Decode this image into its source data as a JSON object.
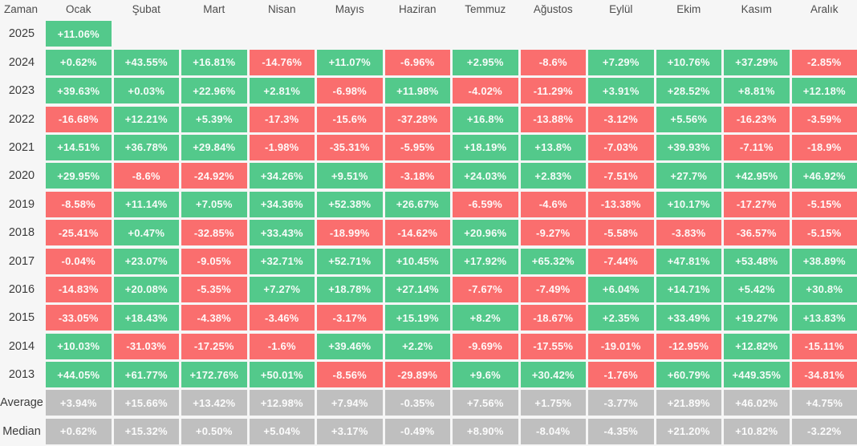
{
  "chart_data": {
    "type": "heatmap",
    "columns": [
      "Zaman",
      "Ocak",
      "Şubat",
      "Mart",
      "Nisan",
      "Mayıs",
      "Haziran",
      "Temmuz",
      "Ağustos",
      "Eylül",
      "Ekim",
      "Kasım",
      "Aralık"
    ],
    "rows": [
      {
        "label": "2025",
        "type": "year",
        "values": [
          "+11.06%",
          null,
          null,
          null,
          null,
          null,
          null,
          null,
          null,
          null,
          null,
          null
        ]
      },
      {
        "label": "2024",
        "type": "year",
        "values": [
          "+0.62%",
          "+43.55%",
          "+16.81%",
          "-14.76%",
          "+11.07%",
          "-6.96%",
          "+2.95%",
          "-8.6%",
          "+7.29%",
          "+10.76%",
          "+37.29%",
          "-2.85%"
        ]
      },
      {
        "label": "2023",
        "type": "year",
        "values": [
          "+39.63%",
          "+0.03%",
          "+22.96%",
          "+2.81%",
          "-6.98%",
          "+11.98%",
          "-4.02%",
          "-11.29%",
          "+3.91%",
          "+28.52%",
          "+8.81%",
          "+12.18%"
        ]
      },
      {
        "label": "2022",
        "type": "year",
        "values": [
          "-16.68%",
          "+12.21%",
          "+5.39%",
          "-17.3%",
          "-15.6%",
          "-37.28%",
          "+16.8%",
          "-13.88%",
          "-3.12%",
          "+5.56%",
          "-16.23%",
          "-3.59%"
        ]
      },
      {
        "label": "2021",
        "type": "year",
        "values": [
          "+14.51%",
          "+36.78%",
          "+29.84%",
          "-1.98%",
          "-35.31%",
          "-5.95%",
          "+18.19%",
          "+13.8%",
          "-7.03%",
          "+39.93%",
          "-7.11%",
          "-18.9%"
        ]
      },
      {
        "label": "2020",
        "type": "year",
        "values": [
          "+29.95%",
          "-8.6%",
          "-24.92%",
          "+34.26%",
          "+9.51%",
          "-3.18%",
          "+24.03%",
          "+2.83%",
          "-7.51%",
          "+27.7%",
          "+42.95%",
          "+46.92%"
        ]
      },
      {
        "label": "2019",
        "type": "year",
        "values": [
          "-8.58%",
          "+11.14%",
          "+7.05%",
          "+34.36%",
          "+52.38%",
          "+26.67%",
          "-6.59%",
          "-4.6%",
          "-13.38%",
          "+10.17%",
          "-17.27%",
          "-5.15%"
        ]
      },
      {
        "label": "2018",
        "type": "year",
        "values": [
          "-25.41%",
          "+0.47%",
          "-32.85%",
          "+33.43%",
          "-18.99%",
          "-14.62%",
          "+20.96%",
          "-9.27%",
          "-5.58%",
          "-3.83%",
          "-36.57%",
          "-5.15%"
        ]
      },
      {
        "label": "2017",
        "type": "year",
        "values": [
          "-0.04%",
          "+23.07%",
          "-9.05%",
          "+32.71%",
          "+52.71%",
          "+10.45%",
          "+17.92%",
          "+65.32%",
          "-7.44%",
          "+47.81%",
          "+53.48%",
          "+38.89%"
        ]
      },
      {
        "label": "2016",
        "type": "year",
        "values": [
          "-14.83%",
          "+20.08%",
          "-5.35%",
          "+7.27%",
          "+18.78%",
          "+27.14%",
          "-7.67%",
          "-7.49%",
          "+6.04%",
          "+14.71%",
          "+5.42%",
          "+30.8%"
        ]
      },
      {
        "label": "2015",
        "type": "year",
        "values": [
          "-33.05%",
          "+18.43%",
          "-4.38%",
          "-3.46%",
          "-3.17%",
          "+15.19%",
          "+8.2%",
          "-18.67%",
          "+2.35%",
          "+33.49%",
          "+19.27%",
          "+13.83%"
        ]
      },
      {
        "label": "2014",
        "type": "year",
        "values": [
          "+10.03%",
          "-31.03%",
          "-17.25%",
          "-1.6%",
          "+39.46%",
          "+2.2%",
          "-9.69%",
          "-17.55%",
          "-19.01%",
          "-12.95%",
          "+12.82%",
          "-15.11%"
        ]
      },
      {
        "label": "2013",
        "type": "year",
        "values": [
          "+44.05%",
          "+61.77%",
          "+172.76%",
          "+50.01%",
          "-8.56%",
          "-29.89%",
          "+9.6%",
          "+30.42%",
          "-1.76%",
          "+60.79%",
          "+449.35%",
          "-34.81%"
        ]
      },
      {
        "label": "Average",
        "type": "stat",
        "values": [
          "+3.94%",
          "+15.66%",
          "+13.42%",
          "+12.98%",
          "+7.94%",
          "-0.35%",
          "+7.56%",
          "+1.75%",
          "-3.77%",
          "+21.89%",
          "+46.02%",
          "+4.75%"
        ]
      },
      {
        "label": "Median",
        "type": "stat",
        "values": [
          "+0.62%",
          "+15.32%",
          "+0.50%",
          "+5.04%",
          "+3.17%",
          "-0.49%",
          "+8.90%",
          "-8.04%",
          "-4.35%",
          "+21.20%",
          "+10.82%",
          "-3.22%"
        ]
      }
    ],
    "layout": {
      "legend": "none",
      "grid": "white gaps between cells",
      "cell_coloring": "positive=green, negative=red, stat rows=gray"
    }
  },
  "colors": {
    "positive": "#53c98b",
    "negative": "#fa6e6e",
    "neutral": "#bfbfbf",
    "page_background": "#f6f6f6",
    "header_text": "#4d4d4d",
    "label_text": "#3c3c3c",
    "cell_text": "#ffffff"
  }
}
